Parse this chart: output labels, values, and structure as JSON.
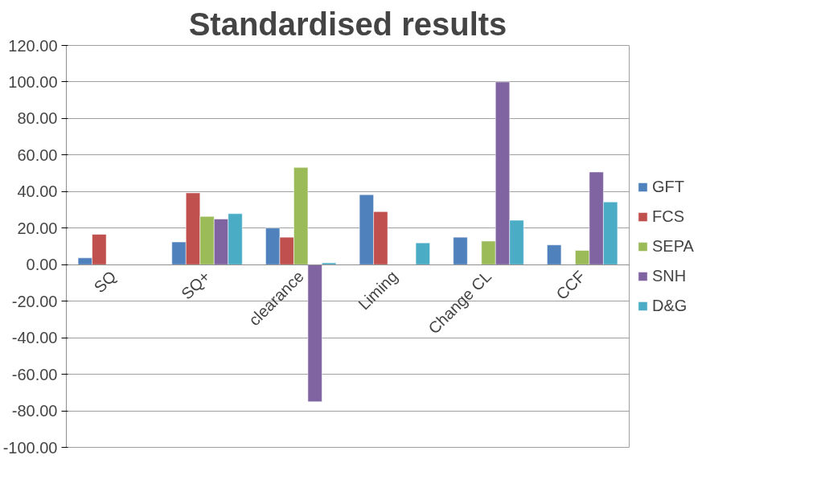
{
  "chart_data": {
    "type": "bar",
    "title": "Standardised results",
    "categories": [
      "SQ",
      "SQ+",
      "clearance",
      "Liming",
      "Change CL",
      "CCF"
    ],
    "series": [
      {
        "name": "GFT",
        "color": "#4f81bd",
        "values": [
          3.7,
          12.4,
          20.0,
          38.3,
          15.0,
          10.8
        ]
      },
      {
        "name": "FCS",
        "color": "#c0504d",
        "values": [
          16.6,
          39.3,
          15.0,
          29.0,
          null,
          null
        ]
      },
      {
        "name": "SEPA",
        "color": "#9bbb59",
        "values": [
          null,
          26.4,
          53.2,
          null,
          12.9,
          7.8
        ]
      },
      {
        "name": "SNH",
        "color": "#8064a2",
        "values": [
          null,
          25.0,
          -75.0,
          null,
          100.0,
          50.7
        ]
      },
      {
        "name": "D&G",
        "color": "#4bacc6",
        "values": [
          null,
          27.9,
          1.0,
          11.9,
          24.3,
          34.3
        ]
      }
    ],
    "ylim": [
      -100,
      120
    ],
    "yticks": [
      {
        "value": -100,
        "label": "-100.00"
      },
      {
        "value": -80,
        "label": "-80.00"
      },
      {
        "value": -60,
        "label": "-60.00"
      },
      {
        "value": -40,
        "label": "-40.00"
      },
      {
        "value": -20,
        "label": "-20.00"
      },
      {
        "value": 0,
        "label": "0.00"
      },
      {
        "value": 20,
        "label": "20.00"
      },
      {
        "value": 40,
        "label": "40.00"
      },
      {
        "value": 60,
        "label": "60.00"
      },
      {
        "value": 80,
        "label": "80.00"
      },
      {
        "value": 100,
        "label": "100.00"
      },
      {
        "value": 120,
        "label": "120.00"
      }
    ],
    "grid": "y",
    "legend": "right"
  }
}
